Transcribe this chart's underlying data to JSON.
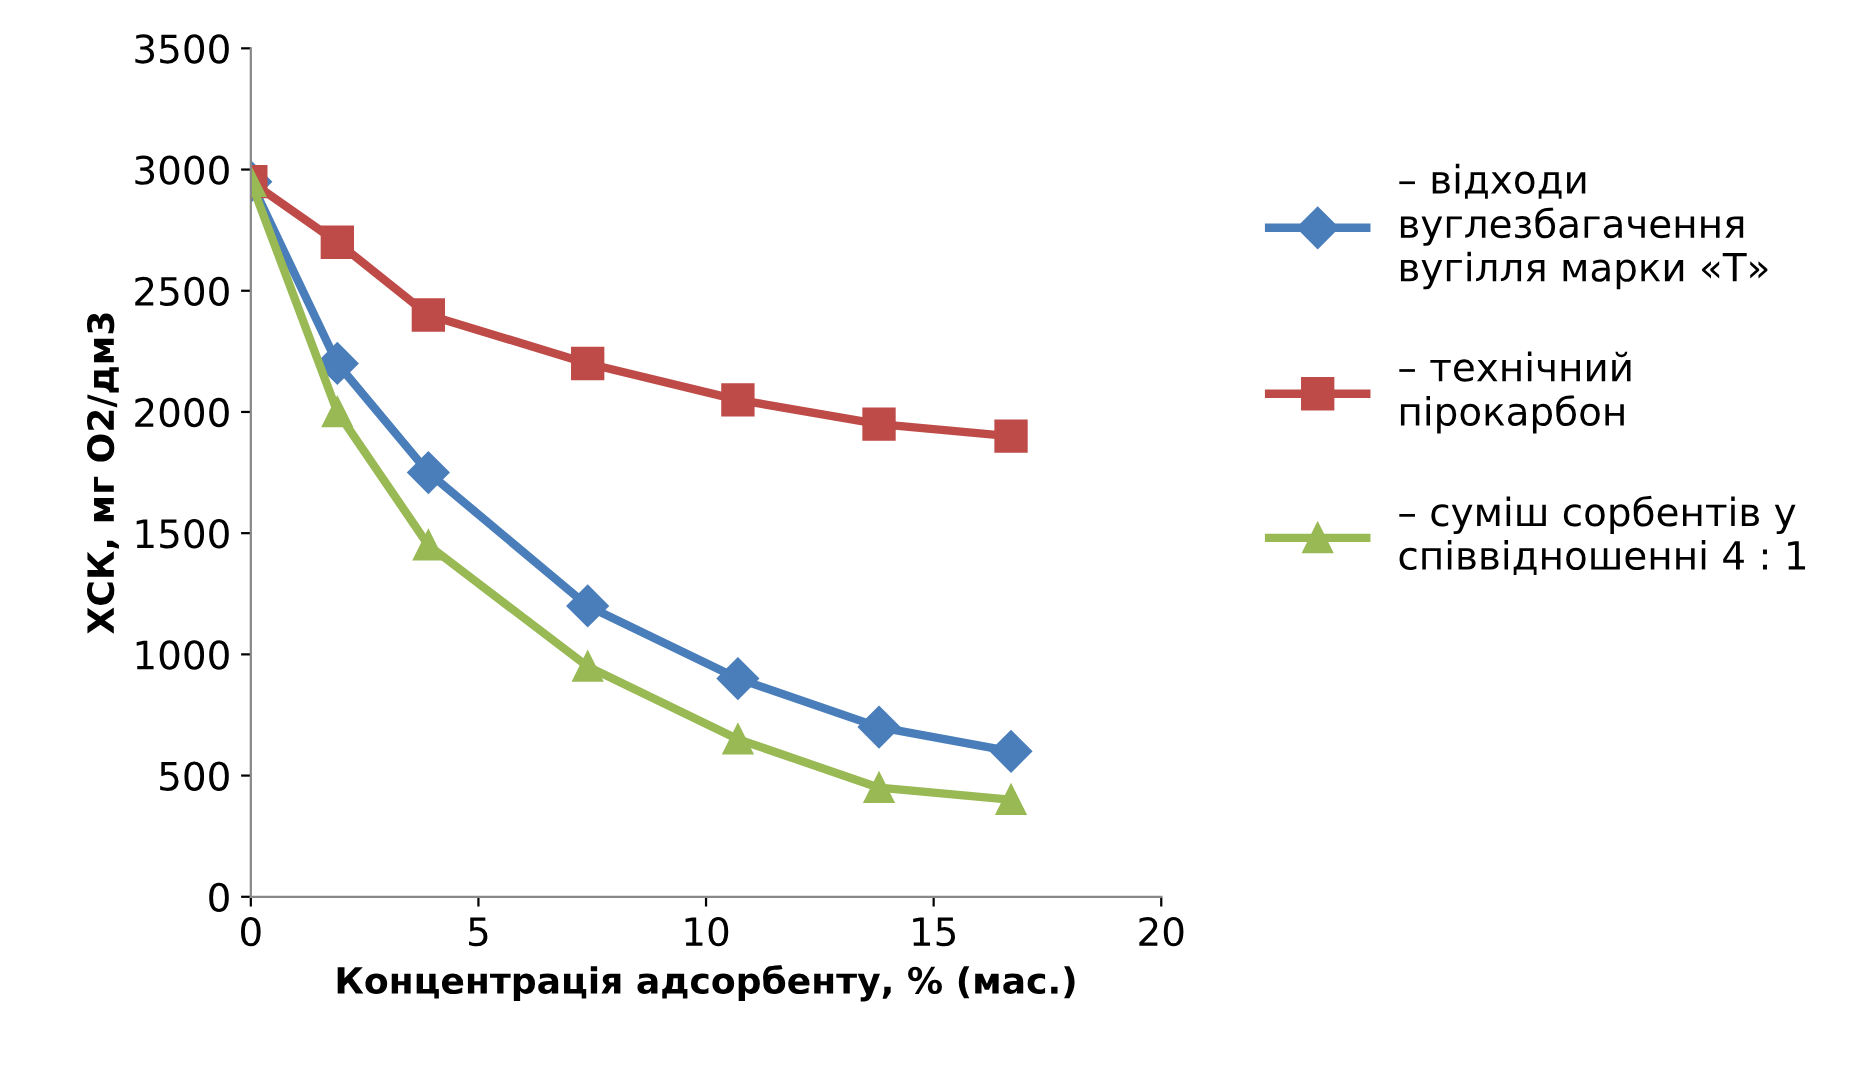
{
  "chart_data": {
    "type": "line",
    "xlabel": "Концентрація адсорбенту, % (мас.)",
    "ylabel": "ХСК, мг О2/дм3",
    "x": [
      0,
      1.9,
      3.9,
      7.4,
      10.7,
      13.8,
      16.7
    ],
    "series": [
      {
        "name": "– відходи\nвуглезбагачення\nвугілля марки «Т»",
        "color": "#4a7ebb",
        "marker": "diamond",
        "values": [
          2950,
          2200,
          1750,
          1200,
          900,
          700,
          600
        ]
      },
      {
        "name": "– технічний\nпірокарбон",
        "color": "#be4b48",
        "marker": "square",
        "values": [
          2950,
          2700,
          2400,
          2200,
          2050,
          1950,
          1900
        ]
      },
      {
        "name": "– суміш сорбентів у\nспіввідношенні 4 : 1",
        "color": "#98b954",
        "marker": "triangle",
        "values": [
          2950,
          2000,
          1450,
          950,
          650,
          450,
          400
        ]
      }
    ],
    "xlim": [
      0,
      20
    ],
    "xticks": [
      0,
      5,
      10,
      15,
      20
    ],
    "ylim": [
      0,
      3500
    ],
    "yticks": [
      0,
      500,
      1000,
      1500,
      2000,
      2500,
      3000,
      3500
    ],
    "grid": false,
    "legend": "right",
    "line_style": "solid"
  }
}
